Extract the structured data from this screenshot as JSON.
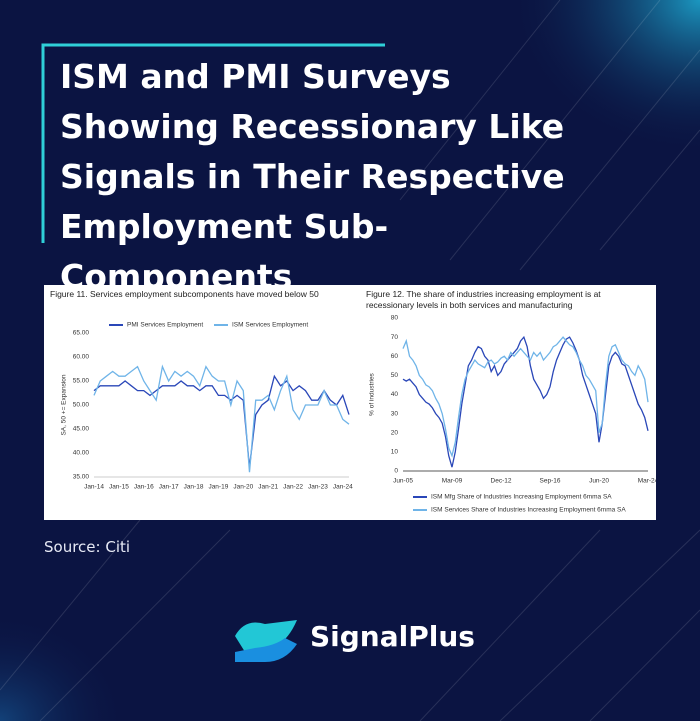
{
  "title": "ISM and PMI Surveys Showing Recessionary Like Signals in Their Respective Employment Sub-Components",
  "source": "Source: Citi",
  "brand": "SignalPlus",
  "chart_data": [
    {
      "type": "line",
      "title": "Figure 11. Services employment subcomponents have moved below 50",
      "y_label": "SA, 50 += Expansion",
      "x": [
        "Jan-14",
        "Apr-14",
        "Jul-14",
        "Oct-14",
        "Jan-15",
        "Apr-15",
        "Jul-15",
        "Oct-15",
        "Jan-16",
        "Apr-16",
        "Jul-16",
        "Oct-16",
        "Jan-17",
        "Apr-17",
        "Jul-17",
        "Oct-17",
        "Jan-18",
        "Apr-18",
        "Jul-18",
        "Oct-18",
        "Jan-19",
        "Apr-19",
        "Jul-19",
        "Oct-19",
        "Jan-20",
        "Apr-20",
        "Jul-20",
        "Oct-20",
        "Jan-21",
        "Apr-21",
        "Jul-21",
        "Oct-21",
        "Jan-22",
        "Apr-22",
        "Jul-22",
        "Oct-22",
        "Jan-23",
        "Apr-23",
        "Jul-23",
        "Oct-23",
        "Jan-24",
        "Apr-24"
      ],
      "xticks": [
        "Jan-14",
        "Jan-15",
        "Jan-16",
        "Jan-17",
        "Jan-18",
        "Jan-19",
        "Jan-20",
        "Jan-21",
        "Jan-22",
        "Jan-23",
        "Jan-24"
      ],
      "ylim": [
        35,
        65
      ],
      "yticks": [
        {
          "value": 35,
          "label": "35.00"
        },
        {
          "value": 40,
          "label": "40.00"
        },
        {
          "value": 45,
          "label": "45.00"
        },
        {
          "value": 50,
          "label": "50.00"
        },
        {
          "value": 55,
          "label": "55.00"
        },
        {
          "value": 60,
          "label": "60.00"
        },
        {
          "value": 65,
          "label": "65.00"
        }
      ],
      "grid": false,
      "legend": "top",
      "series": [
        {
          "name": "PMI Services Employment",
          "color": "#2a47b8",
          "values": [
            53,
            54,
            54,
            54,
            54,
            55,
            54,
            53,
            53,
            52,
            53,
            54,
            54,
            54,
            55,
            54,
            54,
            53,
            54,
            54,
            52,
            52,
            51,
            52,
            51,
            37,
            48,
            50,
            51,
            56,
            54,
            55,
            53,
            54,
            53,
            51,
            51,
            53,
            51,
            50,
            52,
            48
          ]
        },
        {
          "name": "ISM Services Employment",
          "color": "#6fb4e8",
          "values": [
            52,
            55,
            56,
            57,
            56,
            56,
            57,
            58,
            55,
            53,
            51,
            58,
            55,
            57,
            56,
            57,
            56,
            54,
            58,
            56,
            55,
            55,
            50,
            55,
            53,
            36,
            51,
            51,
            52,
            49,
            53,
            56,
            49,
            47,
            50,
            50,
            50,
            53,
            50,
            50,
            47,
            46
          ]
        }
      ]
    },
    {
      "type": "line",
      "title": "Figure 12. The share of industries increasing employment is at recessionary levels in both services and manufacturing",
      "y_label": "% of industries",
      "x": [
        "Jun-05",
        "Sep-05",
        "Dec-05",
        "Mar-06",
        "Jun-06",
        "Sep-06",
        "Dec-06",
        "Mar-07",
        "Jun-07",
        "Sep-07",
        "Dec-07",
        "Mar-08",
        "Jun-08",
        "Sep-08",
        "Dec-08",
        "Mar-09",
        "Jun-09",
        "Sep-09",
        "Dec-09",
        "Mar-10",
        "Jun-10",
        "Sep-10",
        "Dec-10",
        "Mar-11",
        "Jun-11",
        "Sep-11",
        "Dec-11",
        "Mar-12",
        "Jun-12",
        "Sep-12",
        "Dec-12",
        "Mar-13",
        "Jun-13",
        "Sep-13",
        "Dec-13",
        "Mar-14",
        "Jun-14",
        "Sep-14",
        "Dec-14",
        "Mar-15",
        "Jun-15",
        "Sep-15",
        "Dec-15",
        "Mar-16",
        "Jun-16",
        "Sep-16",
        "Dec-16",
        "Mar-17",
        "Jun-17",
        "Sep-17",
        "Dec-17",
        "Mar-18",
        "Jun-18",
        "Sep-18",
        "Dec-18",
        "Mar-19",
        "Jun-19",
        "Sep-19",
        "Dec-19",
        "Mar-20",
        "Jun-20",
        "Sep-20",
        "Dec-20",
        "Mar-21",
        "Jun-21",
        "Sep-21",
        "Dec-21",
        "Mar-22",
        "Jun-22",
        "Sep-22",
        "Dec-22",
        "Mar-23",
        "Jun-23",
        "Sep-23",
        "Dec-23",
        "Mar-24"
      ],
      "xticks": [
        "Jun-05",
        "Mar-09",
        "Dec-12",
        "Sep-16",
        "Jun-20",
        "Mar-24"
      ],
      "ylim": [
        0,
        80
      ],
      "yticks": [
        0,
        10,
        20,
        30,
        40,
        50,
        60,
        70,
        80
      ],
      "grid": false,
      "legend": "bottom",
      "series": [
        {
          "name": "ISM Mfg Share of Industries Increasing Employment 6mma SA",
          "color": "#2a47b8",
          "values": [
            48,
            47,
            48,
            46,
            44,
            40,
            38,
            36,
            35,
            33,
            30,
            28,
            25,
            18,
            8,
            2,
            10,
            22,
            35,
            45,
            55,
            58,
            62,
            65,
            64,
            60,
            58,
            52,
            55,
            50,
            52,
            56,
            58,
            60,
            62,
            64,
            68,
            70,
            65,
            55,
            48,
            45,
            42,
            38,
            40,
            44,
            52,
            58,
            62,
            66,
            69,
            70,
            67,
            63,
            58,
            50,
            45,
            40,
            35,
            30,
            15,
            25,
            40,
            55,
            60,
            62,
            60,
            56,
            55,
            50,
            45,
            40,
            35,
            32,
            28,
            21
          ]
        },
        {
          "name": "ISM Services Share of Industries Increasing Employment 6mma SA",
          "color": "#6fb4e8",
          "values": [
            64,
            68,
            60,
            58,
            55,
            50,
            48,
            45,
            44,
            42,
            38,
            35,
            30,
            22,
            12,
            8,
            15,
            28,
            40,
            48,
            52,
            55,
            58,
            56,
            55,
            54,
            57,
            58,
            56,
            57,
            59,
            60,
            58,
            62,
            60,
            62,
            64,
            62,
            60,
            58,
            62,
            60,
            62,
            58,
            60,
            62,
            65,
            66,
            68,
            70,
            68,
            66,
            65,
            62,
            58,
            55,
            50,
            48,
            45,
            42,
            20,
            25,
            45,
            60,
            65,
            66,
            62,
            58,
            56,
            55,
            52,
            50,
            55,
            52,
            48,
            36
          ]
        }
      ]
    }
  ]
}
